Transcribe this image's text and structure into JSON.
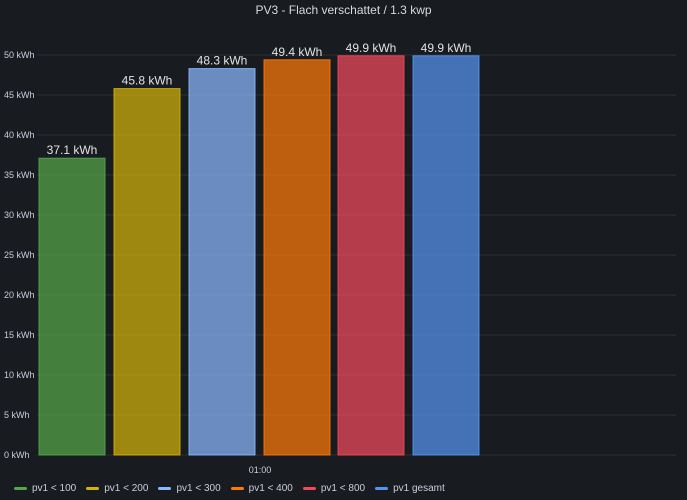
{
  "panel": {
    "title": "PV3 - Flach verschattet / 1.3 kwp"
  },
  "chart_data": {
    "type": "bar",
    "title": "PV3 - Flach verschattet / 1.3 kwp",
    "x_tick_labels": [
      "01:00"
    ],
    "unit": "kWh",
    "ylim": [
      0,
      50
    ],
    "y_ticks": [
      0,
      5,
      10,
      15,
      20,
      25,
      30,
      35,
      40,
      45,
      50
    ],
    "y_tick_labels": [
      "0 kWh",
      "5 kWh",
      "10 kWh",
      "15 kWh",
      "20 kWh",
      "25 kWh",
      "30 kWh",
      "35 kWh",
      "40 kWh",
      "45 kWh",
      "50 kWh"
    ],
    "grid": true,
    "legend_position": "bottom-left",
    "series": [
      {
        "name": "pv1 < 100",
        "value": 37.1,
        "label": "37.1 kWh",
        "color": "#56a64b"
      },
      {
        "name": "pv1 < 200",
        "value": 45.8,
        "label": "45.8 kWh",
        "color": "#d4b30a"
      },
      {
        "name": "pv1 < 300",
        "value": 48.3,
        "label": "48.3 kWh",
        "color": "#8ab8ff"
      },
      {
        "name": "pv1 < 400",
        "value": 49.4,
        "label": "49.4 kWh",
        "color": "#ff780a"
      },
      {
        "name": "pv1 < 800",
        "value": 49.9,
        "label": "49.9 kWh",
        "color": "#f2495c"
      },
      {
        "name": "pv1 gesamt",
        "value": 49.9,
        "label": "49.9 kWh",
        "color": "#5794f2"
      }
    ]
  }
}
